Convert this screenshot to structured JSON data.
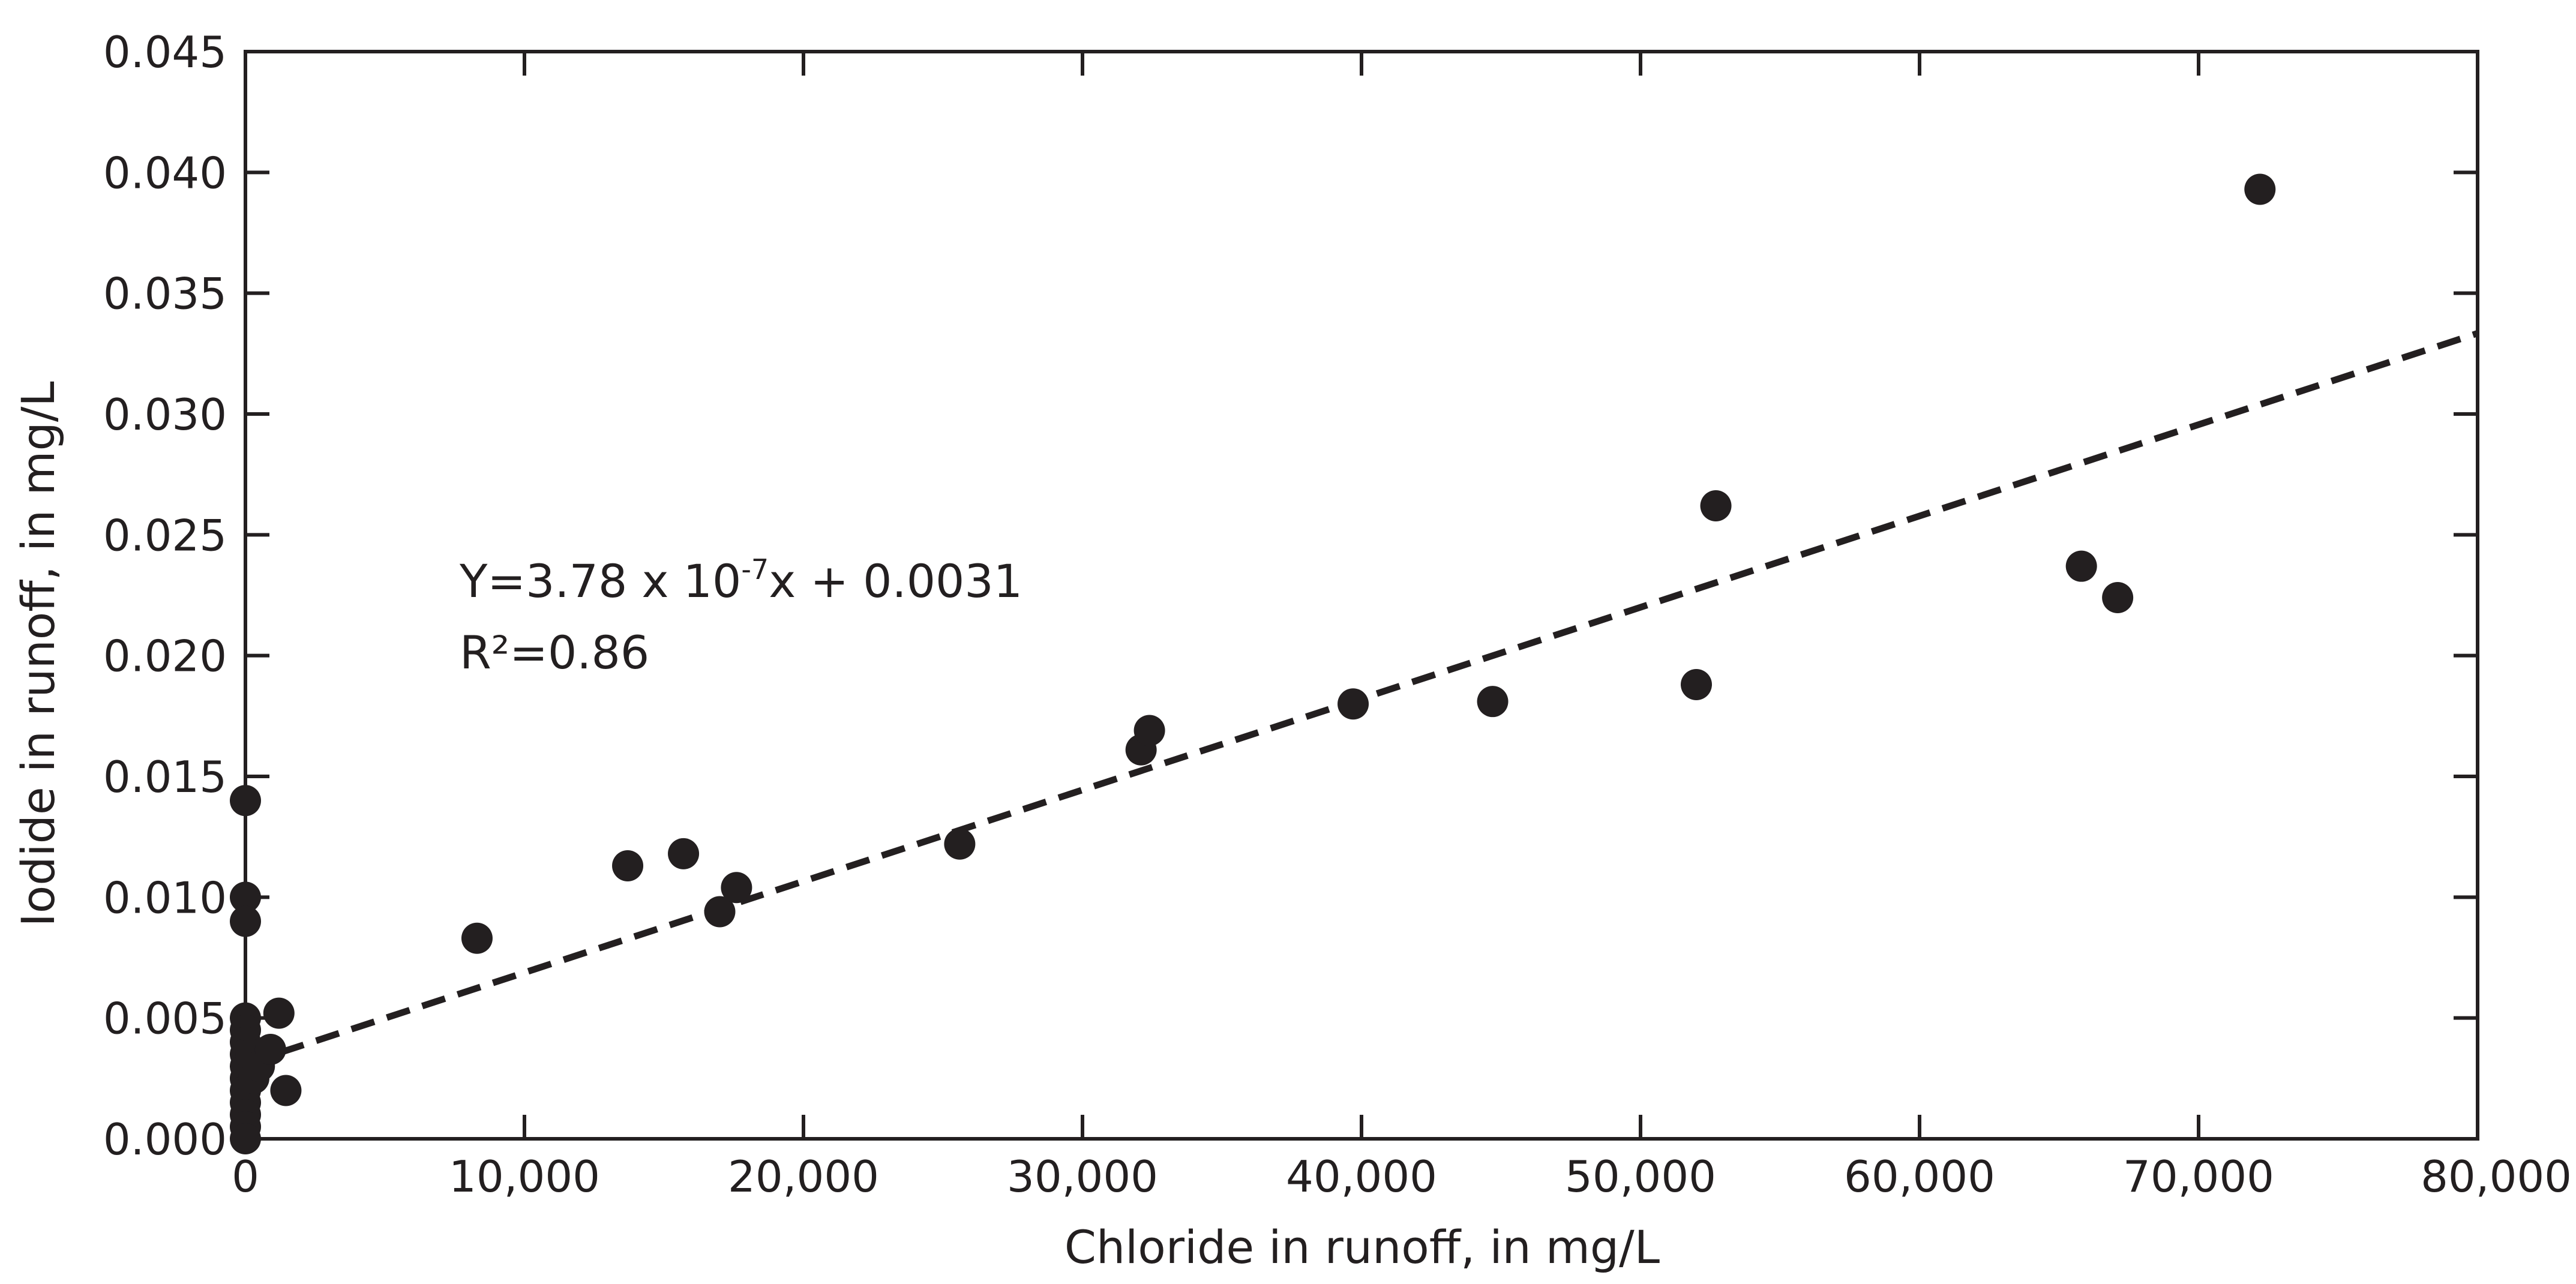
{
  "chart_data": {
    "type": "scatter",
    "xlabel": "Chloride in runoff, in mg/L",
    "ylabel": "Iodide in runoff, in mg/L",
    "xlim": [
      0,
      80000
    ],
    "ylim": [
      0,
      0.045
    ],
    "x_ticks": [
      0,
      10000,
      20000,
      30000,
      40000,
      50000,
      60000,
      70000,
      80000
    ],
    "x_tick_labels": [
      "0",
      "10,000",
      "20,000",
      "30,000",
      "40,000",
      "50,000",
      "60,000",
      "70,000",
      "80,000"
    ],
    "y_ticks": [
      0,
      0.005,
      0.01,
      0.015,
      0.02,
      0.025,
      0.03,
      0.035,
      0.04,
      0.045
    ],
    "y_tick_labels": [
      "0.000",
      "0.005",
      "0.010",
      "0.015",
      "0.020",
      "0.025",
      "0.030",
      "0.035",
      "0.040",
      "0.045"
    ],
    "grid": false,
    "marker_color": "#231f20",
    "line_color": "#231f20",
    "series": [
      {
        "points": [
          [
            0,
            0.014
          ],
          [
            0,
            0.01
          ],
          [
            0,
            0.009
          ],
          [
            0,
            0.005
          ],
          [
            0,
            0.0045
          ],
          [
            0,
            0.004
          ],
          [
            0,
            0.0035
          ],
          [
            0,
            0.003
          ],
          [
            0,
            0.0025
          ],
          [
            0,
            0.002
          ],
          [
            0,
            0.0015
          ],
          [
            0,
            0.001
          ],
          [
            0,
            0.0005
          ],
          [
            0,
            0.0
          ],
          [
            200,
            0.0035
          ],
          [
            300,
            0.0025
          ],
          [
            500,
            0.003
          ],
          [
            900,
            0.0037
          ],
          [
            1200,
            0.0052
          ],
          [
            1450,
            0.002
          ],
          [
            8300,
            0.0083
          ],
          [
            13700,
            0.0113
          ],
          [
            15700,
            0.0118
          ],
          [
            17000,
            0.0094
          ],
          [
            17600,
            0.0104
          ],
          [
            25600,
            0.0122
          ],
          [
            32100,
            0.0161
          ],
          [
            32400,
            0.0169
          ],
          [
            39700,
            0.018
          ],
          [
            44700,
            0.0181
          ],
          [
            52000,
            0.0188
          ],
          [
            52700,
            0.0262
          ],
          [
            65800,
            0.0237
          ],
          [
            67100,
            0.0224
          ],
          [
            72200,
            0.0393
          ]
        ]
      }
    ],
    "trendline": {
      "style": "dashed",
      "slope": 3.78e-07,
      "intercept": 0.0031,
      "x_range": [
        0,
        80000
      ]
    },
    "annotations": {
      "equation_base": "Y=3.78 x 10",
      "equation_exp": "-7",
      "equation_tail": "x + 0.0031",
      "r_squared": "R²=0.86"
    }
  }
}
